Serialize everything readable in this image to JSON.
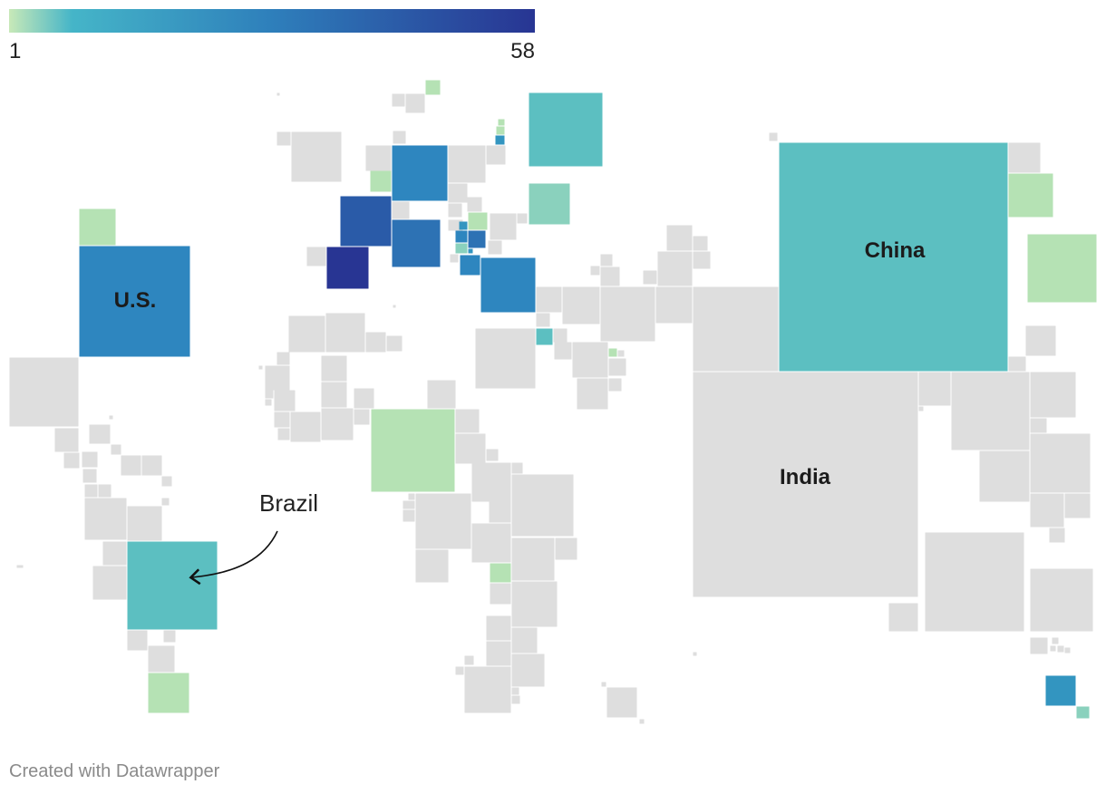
{
  "legend": {
    "min_label": "1",
    "max_label": "58",
    "gradient_colors": [
      "#c8e9b8",
      "#45b5c8",
      "#2e7fbb",
      "#283593"
    ]
  },
  "colors": {
    "no_data": "#dedede",
    "scale_1": "#b5e2b4",
    "scale_2": "#8ad1bd",
    "scale_3": "#5cbfc1",
    "scale_4": "#3395c0",
    "scale_5": "#2e86bf",
    "scale_6": "#2d72b4",
    "scale_7": "#2a5ba8",
    "scale_8": "#283593"
  },
  "country_labels": {
    "us": "U.S.",
    "china": "China",
    "india": "India"
  },
  "annotation": {
    "text": "Brazil"
  },
  "footer": {
    "credit": "Created with Datawrapper"
  }
}
